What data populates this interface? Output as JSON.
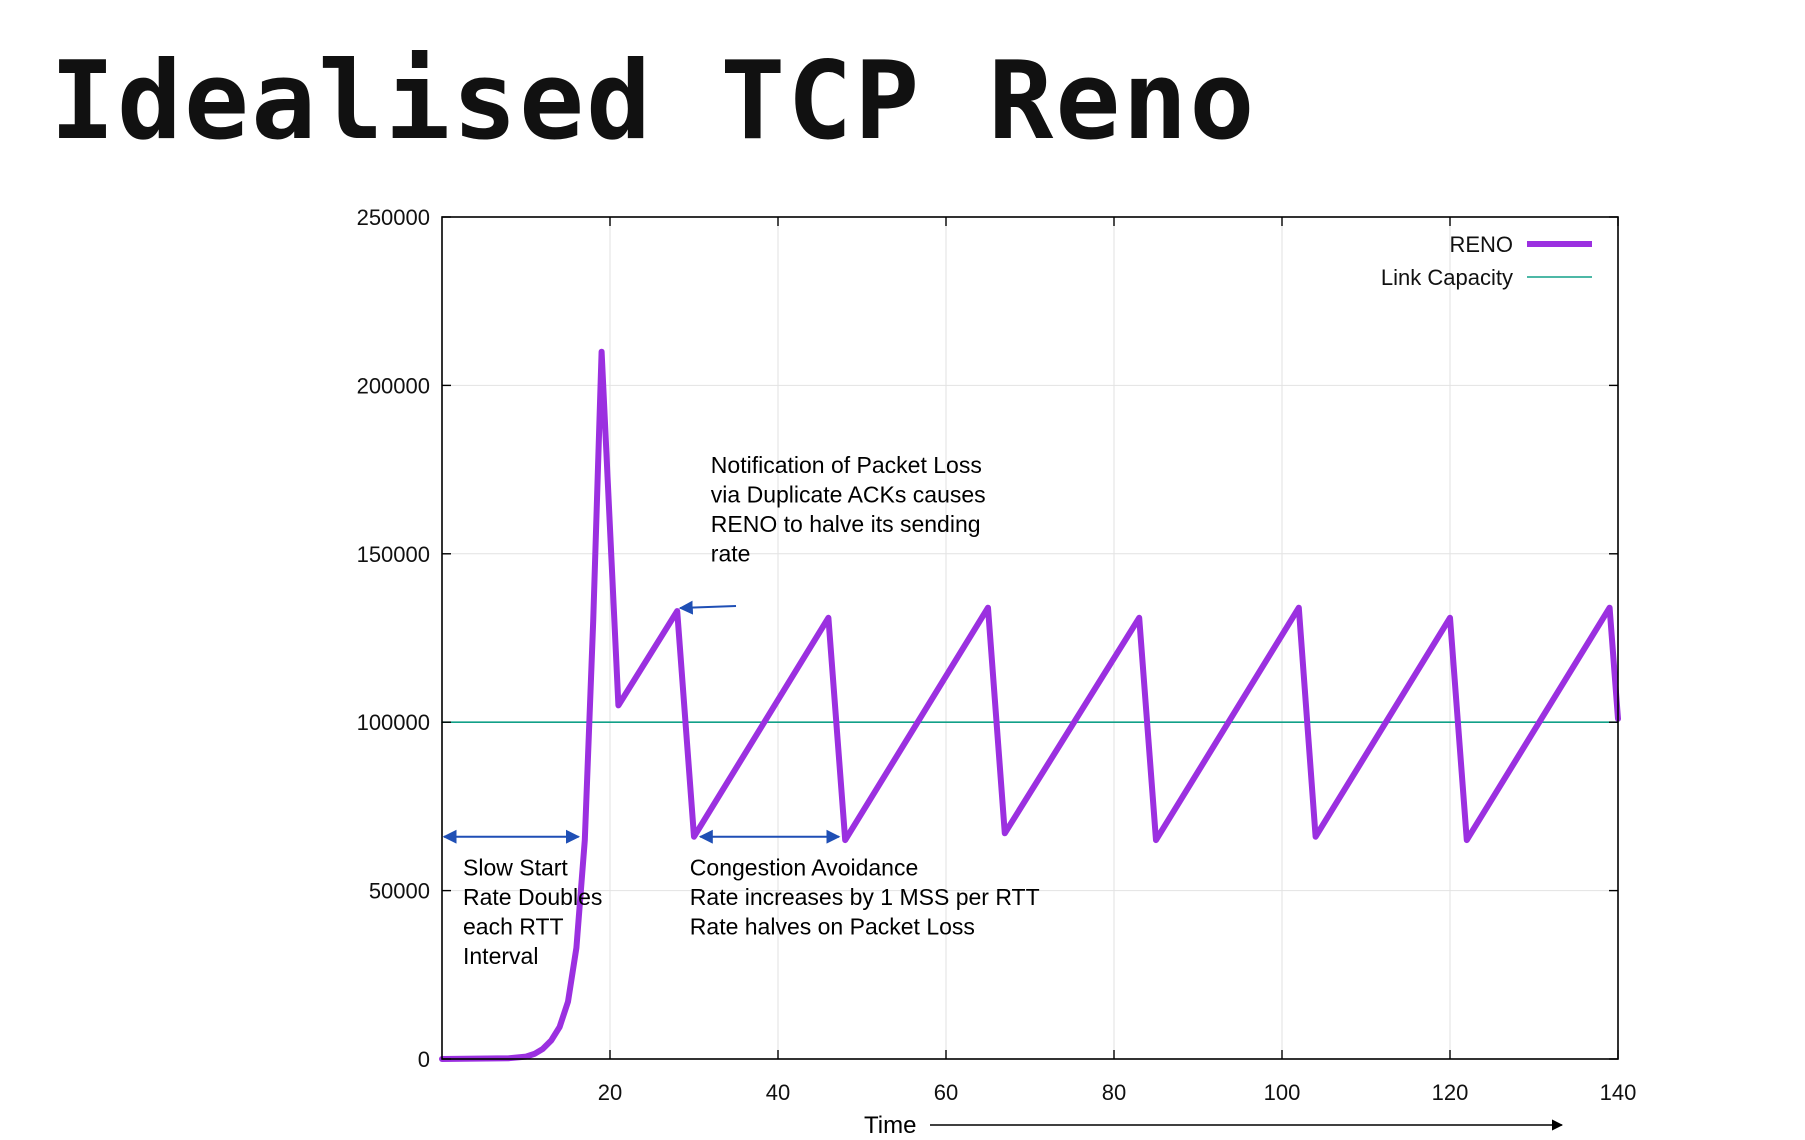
{
  "slide": {
    "title": "Idealised TCP Reno"
  },
  "chart_data": {
    "type": "line",
    "title": "",
    "xlabel": "Time",
    "ylabel": "",
    "xlim": [
      0,
      140
    ],
    "ylim": [
      0,
      250000
    ],
    "x_ticks": [
      20,
      40,
      60,
      80,
      100,
      120,
      140
    ],
    "y_ticks": [
      0,
      50000,
      100000,
      150000,
      200000,
      250000
    ],
    "grid": true,
    "legend_position": "top-right",
    "series": [
      {
        "name": "RENO",
        "color": "#9b30e0",
        "points": [
          [
            0,
            0
          ],
          [
            8,
            250
          ],
          [
            10,
            700
          ],
          [
            11,
            1500
          ],
          [
            12,
            3000
          ],
          [
            13,
            5500
          ],
          [
            14,
            9500
          ],
          [
            15,
            17000
          ],
          [
            16,
            33000
          ],
          [
            17,
            65000
          ],
          [
            18,
            130000
          ],
          [
            19,
            210000
          ],
          [
            21,
            105000
          ],
          [
            28,
            133000
          ],
          [
            30,
            66000
          ],
          [
            46,
            131000
          ],
          [
            48,
            65000
          ],
          [
            65,
            134000
          ],
          [
            67,
            67000
          ],
          [
            83,
            131000
          ],
          [
            85,
            65000
          ],
          [
            102,
            134000
          ],
          [
            104,
            66000
          ],
          [
            120,
            131000
          ],
          [
            122,
            65000
          ],
          [
            139,
            134000
          ],
          [
            140,
            101000
          ]
        ]
      },
      {
        "name": "Link Capacity",
        "color": "#12a088",
        "points": [
          [
            0,
            100000
          ],
          [
            140,
            100000
          ]
        ]
      }
    ],
    "annotations": [
      {
        "id": "packet-loss",
        "lines": [
          "Notification of Packet Loss",
          "via Duplicate ACKs causes",
          "RENO to halve its sending",
          "rate"
        ],
        "text_anchor": [
          32,
          174000
        ],
        "arrow_from": [
          35,
          134500
        ],
        "arrow_to": [
          28,
          133000
        ]
      },
      {
        "id": "slow-start",
        "lines": [
          "Slow Start",
          "Rate Doubles",
          "each RTT",
          "Interval"
        ],
        "text_anchor": [
          2.5,
          54500
        ],
        "span": [
          0,
          16.5
        ],
        "span_y": 66000
      },
      {
        "id": "congestion-avoidance",
        "lines": [
          "Congestion Avoidance",
          "Rate increases by 1 MSS per RTT",
          "Rate halves on Packet Loss"
        ],
        "text_anchor": [
          29.5,
          54500
        ],
        "span": [
          30.5,
          47.5
        ],
        "span_y": 66000
      }
    ],
    "annotation_color": "#1f4fb5"
  }
}
